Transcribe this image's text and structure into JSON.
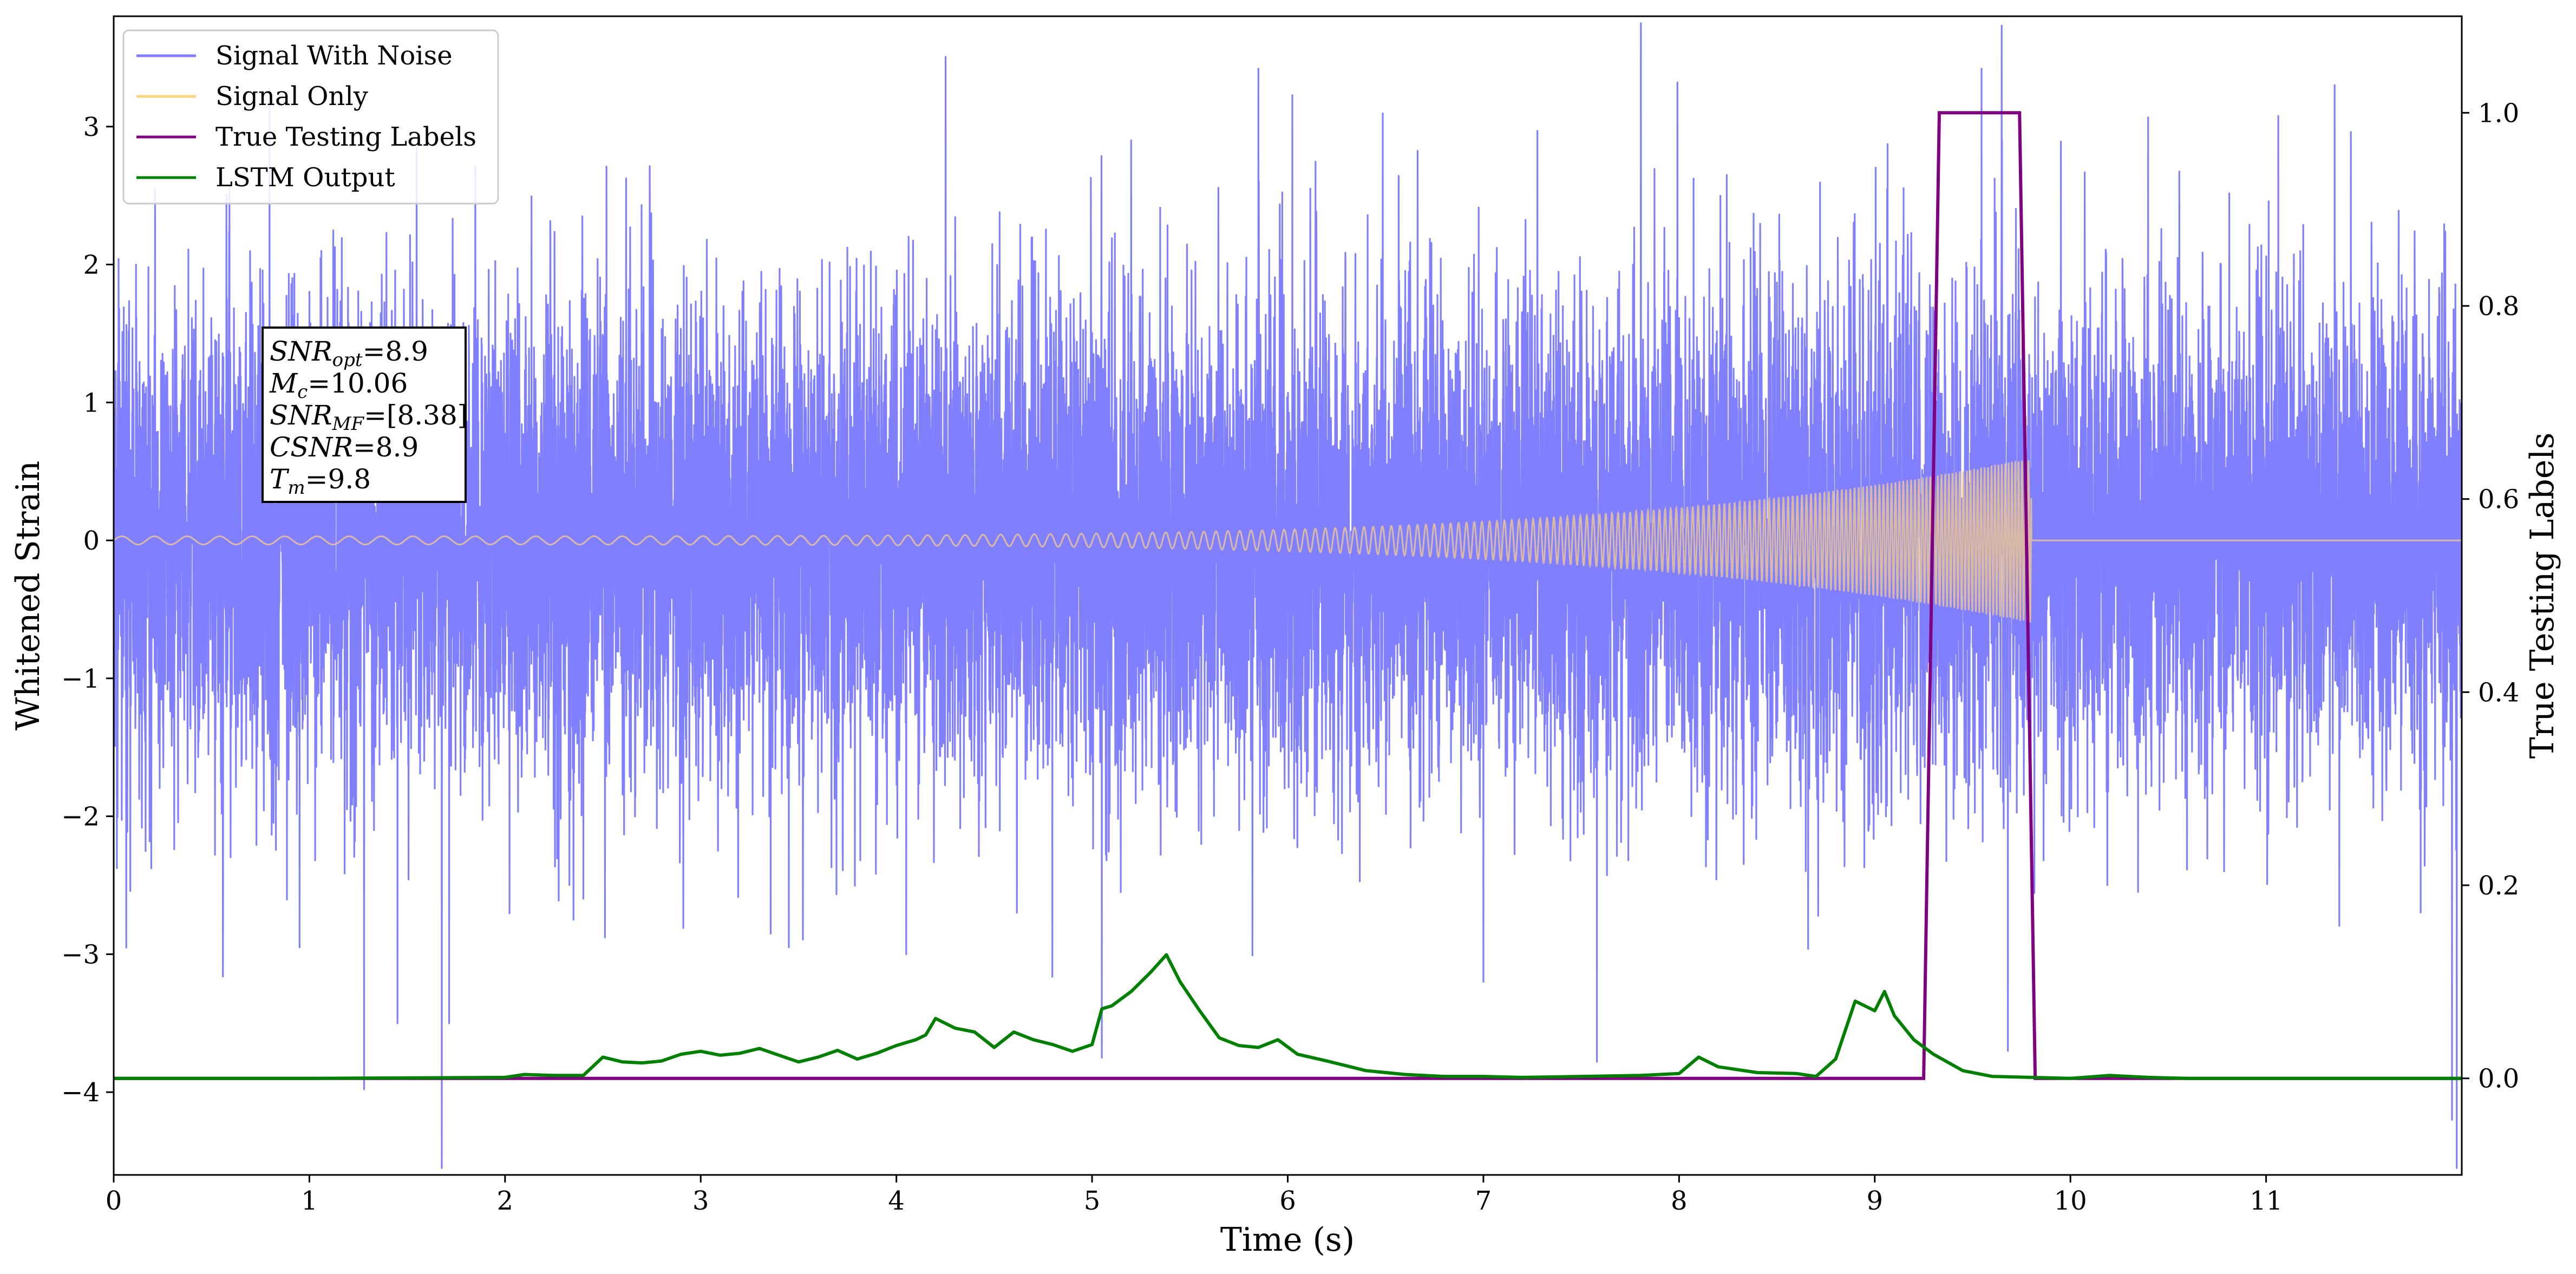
{
  "chart_data": {
    "type": "line",
    "xlabel": "Time (s)",
    "ylabel_left": "Whitened Strain",
    "ylabel_right": "True Testing Labels",
    "xlim": [
      0,
      12
    ],
    "ylim_left": [
      -4.6,
      3.8
    ],
    "ylim_right": [
      -0.1,
      1.1
    ],
    "x_ticks": [
      "0",
      "1",
      "2",
      "3",
      "4",
      "5",
      "6",
      "7",
      "8",
      "9",
      "10",
      "11"
    ],
    "y_left_ticks": [
      "−4",
      "−3",
      "−2",
      "−1",
      "0",
      "1",
      "2",
      "3"
    ],
    "y_right_ticks": [
      "0.0",
      "0.2",
      "0.4",
      "0.6",
      "0.8",
      "1.0"
    ],
    "grid": false,
    "legend": {
      "placement": "top-left",
      "entries": [
        {
          "name": "Signal With Noise",
          "color": "#7f7fff"
        },
        {
          "name": "Signal Only",
          "color": "#ffd27f"
        },
        {
          "name": "True Testing Labels",
          "color": "#800080"
        },
        {
          "name": "LSTM Output",
          "color": "#008000"
        }
      ]
    },
    "annotation": {
      "lines": [
        {
          "base": "SNR",
          "sub": "opt",
          "value": "=8.9"
        },
        {
          "base": "M",
          "sub": "c",
          "value": "=10.06"
        },
        {
          "base": "SNR",
          "sub": "MF",
          "value": "=[8.38]"
        },
        {
          "base": "CSNR",
          "sub": "",
          "value": "=8.9"
        },
        {
          "base": "T",
          "sub": "m",
          "value": "=9.8"
        }
      ]
    },
    "series": [
      {
        "name": "Signal With Noise",
        "axis": "left",
        "color": "#7f7fff",
        "noise_std": 0.85,
        "spikes": [
          {
            "x": 1.28,
            "y": -3.98
          },
          {
            "x": 1.45,
            "y": -3.5
          },
          {
            "x": 2.35,
            "y": -2.75
          },
          {
            "x": 3.45,
            "y": -2.95
          },
          {
            "x": 4.05,
            "y": -3.0
          },
          {
            "x": 5.05,
            "y": -3.75
          },
          {
            "x": 5.85,
            "y": 3.42
          },
          {
            "x": 5.2,
            "y": 2.9
          },
          {
            "x": 7.0,
            "y": -3.2
          },
          {
            "x": 7.58,
            "y": -3.78
          },
          {
            "x": 9.68,
            "y": -3.7
          },
          {
            "x": 9.65,
            "y": 2.9
          },
          {
            "x": 11.35,
            "y": 3.3
          },
          {
            "x": 11.95,
            "y": -4.2
          },
          {
            "x": 0.95,
            "y": -2.95
          }
        ]
      },
      {
        "name": "Signal Only",
        "axis": "left",
        "color": "#ffd27f",
        "start_amplitude": 0.03,
        "end_amplitude": 0.6,
        "end_time": 9.8,
        "after_value": 0.0
      },
      {
        "name": "True Testing Labels",
        "axis": "right",
        "color": "#800080",
        "x": [
          0,
          9.25,
          9.33,
          9.74,
          9.82,
          12
        ],
        "y": [
          0,
          0,
          1,
          1,
          0,
          0
        ]
      },
      {
        "name": "LSTM Output",
        "axis": "right",
        "color": "#008000",
        "x": [
          0,
          1.0,
          2.0,
          2.1,
          2.25,
          2.4,
          2.5,
          2.6,
          2.7,
          2.8,
          2.9,
          3.0,
          3.1,
          3.2,
          3.3,
          3.4,
          3.5,
          3.6,
          3.7,
          3.8,
          3.9,
          4.0,
          4.1,
          4.15,
          4.2,
          4.3,
          4.4,
          4.5,
          4.6,
          4.7,
          4.8,
          4.9,
          5.0,
          5.05,
          5.1,
          5.2,
          5.3,
          5.38,
          5.45,
          5.55,
          5.65,
          5.75,
          5.85,
          5.95,
          6.05,
          6.2,
          6.4,
          6.6,
          6.8,
          7.0,
          7.2,
          7.5,
          7.8,
          8.0,
          8.1,
          8.2,
          8.4,
          8.6,
          8.7,
          8.8,
          8.9,
          9.0,
          9.05,
          9.1,
          9.2,
          9.3,
          9.45,
          9.6,
          10.0,
          10.2,
          10.4,
          10.6,
          11.0,
          12.0
        ],
        "y": [
          0,
          0,
          0.001,
          0.004,
          0.003,
          0.003,
          0.022,
          0.017,
          0.016,
          0.018,
          0.025,
          0.028,
          0.024,
          0.026,
          0.031,
          0.024,
          0.017,
          0.022,
          0.029,
          0.02,
          0.026,
          0.034,
          0.04,
          0.045,
          0.062,
          0.052,
          0.048,
          0.032,
          0.048,
          0.04,
          0.035,
          0.028,
          0.035,
          0.072,
          0.075,
          0.09,
          0.11,
          0.128,
          0.1,
          0.07,
          0.042,
          0.034,
          0.032,
          0.04,
          0.025,
          0.018,
          0.008,
          0.004,
          0.002,
          0.002,
          0.001,
          0.002,
          0.003,
          0.005,
          0.022,
          0.012,
          0.006,
          0.005,
          0.002,
          0.02,
          0.08,
          0.07,
          0.09,
          0.065,
          0.04,
          0.025,
          0.008,
          0.002,
          0.0,
          0.003,
          0.001,
          0.0,
          0.0,
          0.0
        ]
      }
    ]
  }
}
